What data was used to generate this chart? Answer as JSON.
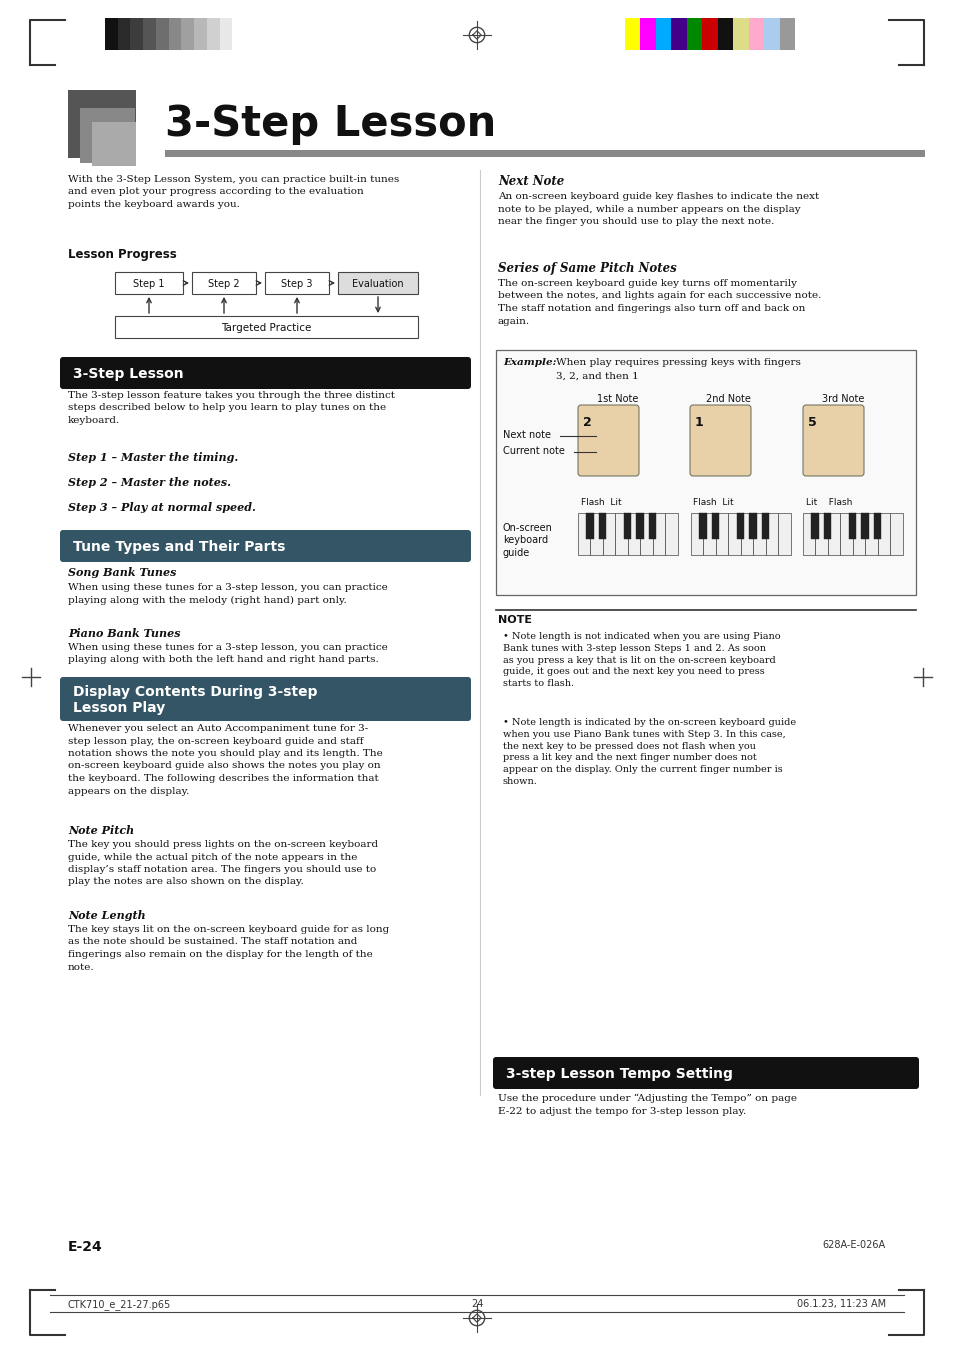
{
  "page_width": 9.54,
  "page_height": 13.51,
  "bg_color": "#ffffff",
  "header_bar_colors_left": [
    "#111111",
    "#2a2a2a",
    "#3d3d3d",
    "#555555",
    "#6e6e6e",
    "#888888",
    "#a0a0a0",
    "#b8b8b8",
    "#d0d0d0",
    "#e8e8e8",
    "#ffffff"
  ],
  "header_bar_colors_right": [
    "#ffff00",
    "#ff00ff",
    "#00aaff",
    "#440088",
    "#008800",
    "#cc0000",
    "#111111",
    "#dddd88",
    "#ffaacc",
    "#aaccee",
    "#999999"
  ],
  "title": "3-Step Lesson",
  "section_bg_black": "#111111",
  "section_bg_teal": "#336677",
  "intro_text_left": "With the 3-Step Lesson System, you can practice built-in tunes\nand even plot your progress according to the evaluation\npoints the keyboard awards you.",
  "lesson_progress_label": "Lesson Progress",
  "step_labels": [
    "Step 1",
    "Step 2",
    "Step 3",
    "Evaluation"
  ],
  "targeted_practice_label": "Targeted Practice",
  "section1_title": "3-Step Lesson",
  "section1_body": "The 3-step lesson feature takes you through the three distinct\nsteps described below to help you learn to play tunes on the\nkeyboard.",
  "step1_text": "Step 1 – Master the timing.",
  "step2_text": "Step 2 – Master the notes.",
  "step3_text": "Step 3 – Play at normal speed.",
  "section2_title": "Tune Types and Their Parts",
  "song_bank_title": "Song Bank Tunes",
  "song_bank_body": "When using these tunes for a 3-step lesson, you can practice\nplaying along with the melody (right hand) part only.",
  "piano_bank_title": "Piano Bank Tunes",
  "piano_bank_body": "When using these tunes for a 3-step lesson, you can practice\nplaying along with both the left hand and right hand parts.",
  "section3_title": "Display Contents During 3-step\nLesson Play",
  "section3_body": "Whenever you select an Auto Accompaniment tune for 3-\nstep lesson play, the on-screen keyboard guide and staff\nnotation shows the note you should play and its length. The\non-screen keyboard guide also shows the notes you play on\nthe keyboard. The following describes the information that\nappears on the display.",
  "note_pitch_title": "Note Pitch",
  "note_pitch_body": "The key you should press lights on the on-screen keyboard\nguide, while the actual pitch of the note appears in the\ndisplay’s staff notation area. The fingers you should use to\nplay the notes are also shown on the display.",
  "note_length_title": "Note Length",
  "note_length_body": "The key stays lit on the on-screen keyboard guide for as long\nas the note should be sustained. The staff notation and\nfingerings also remain on the display for the length of the\nnote.",
  "next_note_title": "Next Note",
  "next_note_body": "An on-screen keyboard guide key flashes to indicate the next\nnote to be played, while a number appears on the display\nnear the finger you should use to play the next note.",
  "series_title": "Series of Same Pitch Notes",
  "series_body": "The on-screen keyboard guide key turns off momentarily\nbetween the notes, and lights again for each successive note.\nThe staff notation and fingerings also turn off and back on\nagain.",
  "section4_title": "3-step Lesson Tempo Setting",
  "section4_body": "Use the procedure under “Adjusting the Tempo” on page\nE-22 to adjust the tempo for 3-step lesson play.",
  "note_bullet1": "Note length is not indicated when you are using Piano\nBank tunes with 3-step lesson Steps 1 and 2. As soon\nas you press a key that is lit on the on-screen keyboard\nguide, it goes out and the next key you need to press\nstarts to flash.",
  "note_bullet2": "Note length is indicated by the on-screen keyboard guide\nwhen you use Piano Bank tunes with Step 3. In this case,\nthe next key to be pressed does not flash when you\npress a lit key and the next finger number does not\nappear on the display. Only the current finger number is\nshown.",
  "page_number": "E-24",
  "page_code": "628A-E-026A",
  "footer_left": "CTK710_e_21-27.p65",
  "footer_center": "24",
  "footer_right": "06.1.23, 11:23 AM",
  "example_label": "Example:",
  "example_text": " When play requires pressing keys with fingers\n             3, 2, and then 1",
  "col_notes": [
    "1st Note",
    "2nd Note",
    "3rd Note"
  ],
  "flash_lit_labels": [
    "Flash  Lit",
    "Flash  Lit",
    "Lit    Flash"
  ],
  "on_screen_label": "On-screen\nkeyboard\nguide",
  "hand_numbers": [
    "2",
    "1",
    "5"
  ]
}
